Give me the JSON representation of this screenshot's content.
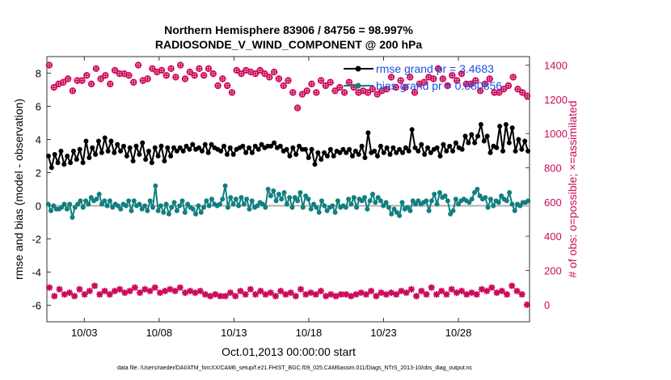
{
  "chart_data": {
    "type": "line",
    "title_line1": "Northern Hemisphere 83906 / 84756 = 98.997%",
    "title_line2": "RADIOSONDE_V_WIND_COMPONENT @ 200 hPa",
    "xlabel": "Oct.01,2013 00:00:00 start",
    "ylabel_left": "rmse and bias (model - observation)",
    "ylabel_right": "# of obs: o=possible; ×=assimilated",
    "x_range_days": [
      0.5,
      32.75
    ],
    "x_ticks": [
      3,
      8,
      13,
      18,
      23,
      28
    ],
    "x_tick_labels": [
      "10/03",
      "10/08",
      "10/13",
      "10/18",
      "10/23",
      "10/28"
    ],
    "ylim_left": [
      -7,
      9
    ],
    "y_ticks_left": [
      -6,
      -4,
      -2,
      0,
      2,
      4,
      6,
      8
    ],
    "ylim_right": [
      -100,
      1450
    ],
    "y_ticks_right": [
      0,
      200,
      400,
      600,
      800,
      1000,
      1200,
      1400
    ],
    "zero_line": 0,
    "legend": [
      {
        "name": "rmse grand pr = 3.4683",
        "color": "#000000"
      },
      {
        "name": "bias grand pr = 0.080856",
        "color": "#127f7f"
      }
    ],
    "series": [
      {
        "name": "rmse",
        "color": "#000000",
        "values": [
          3.0,
          2.3,
          3.1,
          2.6,
          3.3,
          2.5,
          3.0,
          2.6,
          3.3,
          2.8,
          3.4,
          2.6,
          3.9,
          2.9,
          3.5,
          3.1,
          3.9,
          3.2,
          4.1,
          3.3,
          3.9,
          3.2,
          3.7,
          3.3,
          3.6,
          3.0,
          3.5,
          2.7,
          3.6,
          3.1,
          3.8,
          2.8,
          3.3,
          2.6,
          3.5,
          3.0,
          3.6,
          2.7,
          3.5,
          3.0,
          3.5,
          3.3,
          3.5,
          3.3,
          3.6,
          3.4,
          3.7,
          3.4,
          3.5,
          3.3,
          3.7,
          3.2,
          3.7,
          3.5,
          3.4,
          3.3,
          3.6,
          3.1,
          3.5,
          3.1,
          3.4,
          3.5,
          3.6,
          3.2,
          3.5,
          3.2,
          3.6,
          3.4,
          3.7,
          3.5,
          3.6,
          3.6,
          3.8,
          3.5,
          3.6,
          3.3,
          3.4,
          3.0,
          3.5,
          3.1,
          3.6,
          3.4,
          3.4,
          2.9,
          3.4,
          2.5,
          3.2,
          2.8,
          3.2,
          3.0,
          3.4,
          3.0,
          3.3,
          3.2,
          3.4,
          3.2,
          3.4,
          3.0,
          3.3,
          3.1,
          3.6,
          2.9,
          4.4,
          3.2,
          3.3,
          3.0,
          3.6,
          3.2,
          3.5,
          3.1,
          3.5,
          3.2,
          3.4,
          3.2,
          3.5,
          3.3,
          4.6,
          3.5,
          3.3,
          3.7,
          3.1,
          3.5,
          3.2,
          3.4,
          3.5,
          3.0,
          3.7,
          3.3,
          3.6,
          3.3,
          3.8,
          3.5,
          3.4,
          4.2,
          3.8,
          4.3,
          3.8,
          4.2,
          4.9,
          3.9,
          4.2,
          3.2,
          3.6,
          3.5,
          4.8,
          3.3,
          4.9,
          3.8,
          4.7,
          3.3,
          4.0,
          3.4,
          3.9,
          3.3
        ]
      },
      {
        "name": "bias",
        "color": "#127f7f",
        "values": [
          0.1,
          -0.3,
          0.0,
          -0.2,
          -0.2,
          -0.1,
          0.1,
          -0.2,
          0.1,
          -0.7,
          -0.1,
          0.1,
          0.3,
          -0.1,
          0.3,
          0.1,
          0.5,
          0.3,
          0.4,
          0.7,
          0.1,
          0.3,
          0.0,
          0.3,
          -0.1,
          0.1,
          0.0,
          -0.2,
          0.1,
          0.0,
          0.3,
          -0.3,
          0.3,
          0.0,
          0.1,
          -0.2,
          0.0,
          -0.3,
          0.3,
          -0.1,
          1.2,
          -0.3,
          0.0,
          -0.4,
          0.1,
          -0.5,
          -0.1,
          0.2,
          -0.3,
          0.0,
          0.3,
          -0.4,
          0.1,
          -0.1,
          -0.2,
          -0.5,
          0.0,
          -0.4,
          -0.1,
          0.3,
          0.0,
          0.4,
          0.1,
          0.0,
          0.1,
          0.4,
          1.2,
          -0.1,
          0.5,
          0.1,
          0.4,
          0.0,
          0.5,
          0.1,
          0.4,
          -0.2,
          0.3,
          -0.1,
          0.0,
          0.2,
          0.1,
          -0.1,
          1.0,
          0.6,
          0.9,
          0.3,
          0.7,
          0.4,
          0.8,
          0.1,
          0.5,
          -0.1,
          0.5,
          0.3,
          0.8,
          -0.1,
          0.6,
          0.4,
          -0.2,
          0.1,
          -0.1,
          -0.4,
          0.3,
          0.0,
          -0.3,
          -0.1,
          0.0,
          -0.4,
          0.3,
          -0.1,
          0.0,
          -0.1,
          0.4,
          0.1,
          0.5,
          -0.1,
          0.4,
          0.3,
          0.5,
          -0.2,
          0.3,
          0.7,
          0.2,
          0.5,
          0.3,
          0.0,
          0.2,
          -0.1,
          -0.5,
          -0.2,
          -0.4,
          -0.6,
          0.2,
          -0.2,
          -0.1,
          -0.3,
          0.3,
          0.1,
          0.3,
          0.1,
          0.2,
          0.3,
          -0.3,
          0.3,
          0.7,
          0.1,
          0.8,
          0.5,
          0.6,
          0.3,
          -0.5,
          -0.3,
          0.4,
          0.1,
          0.3,
          0.4,
          0.3,
          0.2,
          0.4,
          0.8,
          1.0,
          0.6,
          0.4,
          0.5,
          -0.1,
          0.4,
          0.0,
          0.3,
          0.2,
          0.6,
          0.4,
          0.3,
          0.8,
          0.1,
          -0.3,
          0.1,
          0.0,
          0.2,
          0.2,
          0.3
        ]
      },
      {
        "name": "obs possible",
        "color": "#cc0a5a",
        "values": [
          1400,
          1270,
          1290,
          1300,
          1320,
          1250,
          1310,
          1310,
          1340,
          1290,
          1380,
          1320,
          1340,
          1290,
          1370,
          1350,
          1350,
          1340,
          1300,
          1400,
          1310,
          1320,
          1380,
          1360,
          1370,
          1340,
          1380,
          1330,
          1400,
          1320,
          1360,
          1340,
          1380,
          1340,
          1380,
          1350,
          1280,
          1320,
          1280,
          1240,
          1370,
          1350,
          1370,
          1360,
          1350,
          1370,
          1350,
          1330,
          1360,
          1320,
          1280,
          1310,
          1240,
          1150,
          1230,
          1250,
          1290,
          1240,
          1310,
          1280,
          1300,
          1250,
          1270,
          1240,
          1300,
          1270,
          1240,
          1250,
          1240,
          1260,
          1230,
          1250,
          1260,
          1330,
          1270,
          1310,
          1270,
          1330,
          1240,
          1290,
          1300,
          1330,
          1320,
          1380,
          1320,
          1280,
          1340,
          1310,
          1350,
          1290,
          1290,
          1310,
          1250,
          1290,
          1320,
          1240,
          1240,
          1260,
          1280,
          1330,
          1260,
          1240,
          1220
        ]
      },
      {
        "name": "obs assimilated",
        "color": "#cc0a5a",
        "values": [
          100,
          50,
          90,
          60,
          70,
          50,
          90,
          60,
          80,
          110,
          60,
          80,
          60,
          80,
          90,
          70,
          80,
          100,
          70,
          90,
          80,
          100,
          70,
          80,
          90,
          80,
          100,
          70,
          80,
          70,
          80,
          60,
          50,
          60,
          50,
          50,
          70,
          50,
          80,
          60,
          90,
          60,
          80,
          60,
          70,
          50,
          80,
          60,
          70,
          50,
          90,
          60,
          70,
          60,
          80,
          50,
          60,
          50,
          60,
          60,
          50,
          60,
          70,
          60,
          80,
          50,
          70,
          60,
          70,
          60,
          80,
          70,
          90,
          50,
          80,
          60,
          100,
          60,
          80,
          60,
          90,
          70,
          80,
          60,
          70,
          60,
          90,
          80,
          100,
          70,
          80,
          60,
          110,
          80,
          60,
          0
        ]
      }
    ]
  },
  "footer": "data file: /Users/raeder/DAI/ATM_forcXX/CAM6_setup/f.e21.FHIST_BGC.f09_025.CAM6assim.011/Diags_NTrS_2013-10/obs_diag_output.nc"
}
